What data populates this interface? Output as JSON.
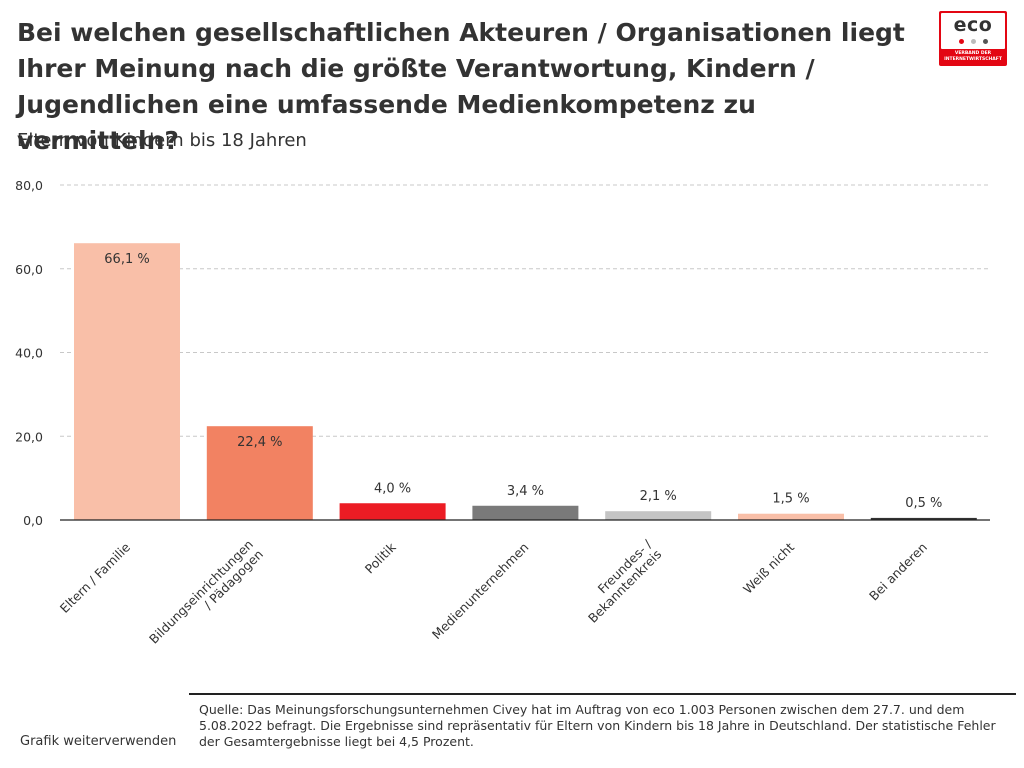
{
  "header": {
    "title": "Bei welchen gesellschaftlichen Akteuren / Organisationen liegt Ihrer Meinung nach die größte Verantwortung, Kindern / Jugendlichen eine umfassende Medienkompetenz zu vermitteln?",
    "subtitle": "Eltern von Kindern bis 18 Jahren"
  },
  "logo": {
    "word": "eco",
    "tagline_1": "VERBAND DER",
    "tagline_2": "INTERNETWIRTSCHAFT",
    "color": "#e30613"
  },
  "chart_data": {
    "type": "bar",
    "title": "",
    "xlabel": "",
    "ylabel": "",
    "ylim": [
      0,
      80
    ],
    "yticks": [
      "0,0",
      "20,0",
      "40,0",
      "60,0",
      "80,0"
    ],
    "ytick_values": [
      0,
      20,
      40,
      60,
      80
    ],
    "grid": true,
    "categories": [
      [
        "Eltern / Familie"
      ],
      [
        "Bildungseinrichtungen",
        "/ Pädagogen"
      ],
      [
        "Politik"
      ],
      [
        "Medienunternehmen"
      ],
      [
        "Freundes- /",
        "Bekanntenkreis"
      ],
      [
        "Weiß nicht"
      ],
      [
        "Bei anderen"
      ]
    ],
    "values": [
      66.1,
      22.4,
      4.0,
      3.4,
      2.1,
      1.5,
      0.5
    ],
    "value_labels": [
      "66,1 %",
      "22,4 %",
      "4,0 %",
      "3,4 %",
      "2,1 %",
      "1,5 %",
      "0,5 %"
    ],
    "colors": [
      "#f9bfa8",
      "#f28262",
      "#ec1c24",
      "#7a7a7a",
      "#c4c4c4",
      "#f9bfa8",
      "#333333"
    ]
  },
  "footer": {
    "source": "Quelle: Das Meinungsforschungsunternehmen Civey hat im Auftrag von eco 1.003 Personen zwischen dem 27.7. und dem 5.08.2022 befragt. Die Ergebnisse sind repräsentativ für Eltern von Kindern bis 18 Jahre in Deutschland. Der statistische Fehler der Gesamtergebnisse liegt bei 4,5 Prozent.",
    "reuse_link": "Grafik weiterverwenden"
  }
}
